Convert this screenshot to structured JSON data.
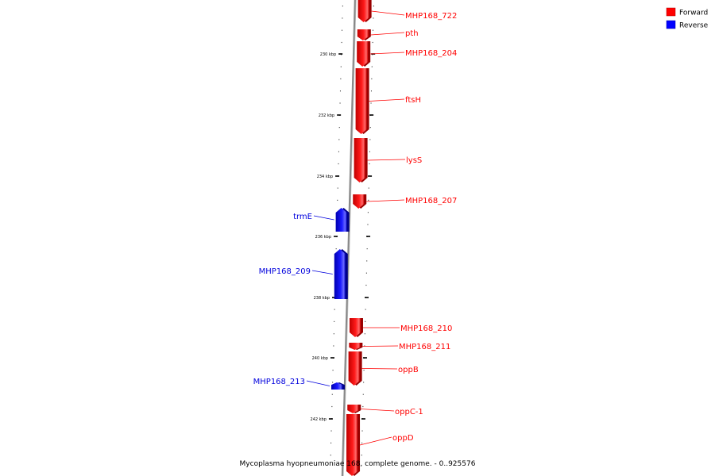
{
  "legend": {
    "items": [
      {
        "label": "Forward",
        "color": "#ff0000"
      },
      {
        "label": "Reverse",
        "color": "#0000ff"
      }
    ]
  },
  "caption": "Mycoplasma hyopneumoniae 168, complete genome. - 0..925576",
  "ticks": [
    "230 kbp",
    "232 kbp",
    "234 kbp",
    "236 kbp",
    "238 kbp",
    "240 kbp",
    "242 kbp"
  ],
  "genes": [
    {
      "name": "MHP168_722",
      "strand": "forward"
    },
    {
      "name": "pth",
      "strand": "forward"
    },
    {
      "name": "MHP168_204",
      "strand": "forward"
    },
    {
      "name": "ftsH",
      "strand": "forward"
    },
    {
      "name": "lysS",
      "strand": "forward"
    },
    {
      "name": "MHP168_207",
      "strand": "forward"
    },
    {
      "name": "trmE",
      "strand": "reverse"
    },
    {
      "name": "MHP168_209",
      "strand": "reverse"
    },
    {
      "name": "MHP168_210",
      "strand": "forward"
    },
    {
      "name": "MHP168_211",
      "strand": "forward"
    },
    {
      "name": "oppB",
      "strand": "forward"
    },
    {
      "name": "MHP168_213",
      "strand": "reverse"
    },
    {
      "name": "oppC-1",
      "strand": "forward"
    },
    {
      "name": "oppD",
      "strand": "forward"
    }
  ]
}
